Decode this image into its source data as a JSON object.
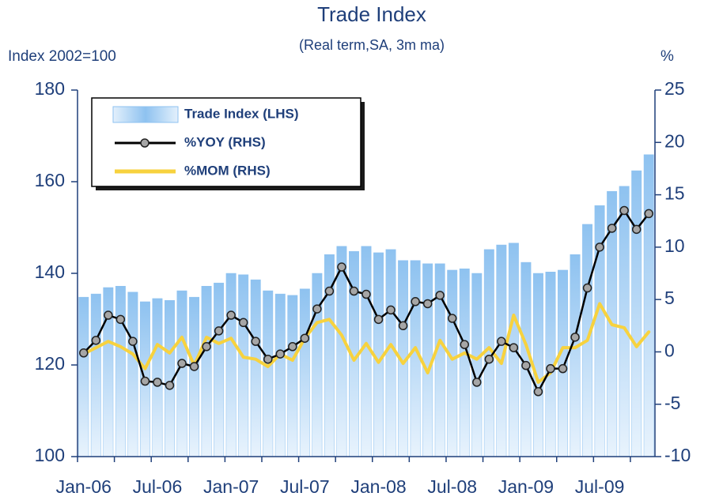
{
  "chart_data": {
    "type": "bar",
    "title": "Trade Index",
    "subtitle": "(Real term,SA, 3m ma)",
    "y_label": "Index 2002=100",
    "y2_label": "%",
    "categories": [
      "Jan-06",
      null,
      null,
      null,
      null,
      null,
      "Jul-06",
      null,
      null,
      null,
      null,
      null,
      "Jan-07",
      null,
      null,
      null,
      null,
      null,
      "Jul-07",
      null,
      null,
      null,
      null,
      null,
      "Jan-08",
      null,
      null,
      null,
      null,
      null,
      "Jul-08",
      null,
      null,
      null,
      null,
      null,
      "Jan-09",
      null,
      null,
      null,
      null,
      null,
      "Jul-09",
      null,
      null,
      null,
      null
    ],
    "series": [
      {
        "name": "Trade Index (LHS)",
        "type": "bar",
        "color": "#8ec2f0",
        "values": [
          134.8,
          135.5,
          136.9,
          137.2,
          135.9,
          133.8,
          134.5,
          134.1,
          136.2,
          134.8,
          137.2,
          137.9,
          140,
          139.7,
          138.6,
          136.2,
          135.5,
          135.2,
          136.6,
          140,
          144.1,
          145.9,
          144.8,
          145.9,
          144.5,
          145.2,
          142.8,
          142.8,
          142.1,
          142.1,
          140.7,
          141,
          140,
          145.2,
          146.2,
          146.6,
          142.4,
          140,
          140.3,
          140.7,
          144.1,
          150.7,
          154.8,
          157.9,
          159,
          162.4,
          165.9
        ]
      },
      {
        "name": "%YOY (RHS)",
        "type": "line",
        "axis": "y2",
        "color": "#000000",
        "marker": true,
        "values": [
          -0.1,
          1.1,
          3.5,
          3.1,
          1.0,
          -2.8,
          -2.9,
          -3.2,
          -1.1,
          -1.4,
          0.5,
          2.0,
          3.5,
          2.8,
          1.0,
          -0.7,
          -0.2,
          0.5,
          1.3,
          4.1,
          5.8,
          8.1,
          5.8,
          5.5,
          3.1,
          4.0,
          2.5,
          4.8,
          4.6,
          5.4,
          3.2,
          0.7,
          -2.9,
          -0.7,
          1.0,
          0.4,
          -1.3,
          -3.8,
          -1.6,
          -1.6,
          1.4,
          6.1,
          10.0,
          11.8,
          13.5,
          11.7,
          13.2
        ]
      },
      {
        "name": "%MOM (RHS)",
        "type": "line",
        "axis": "y2",
        "color": "#f7d23e",
        "marker": false,
        "values": [
          -0.2,
          0.4,
          1.0,
          0.5,
          -0.2,
          -1.6,
          0.7,
          -0.1,
          1.4,
          -1.3,
          1.4,
          0.8,
          1.3,
          -0.5,
          -0.7,
          -1.4,
          -0.2,
          -0.8,
          1.3,
          2.8,
          3.1,
          1.6,
          -0.8,
          0.8,
          -1.0,
          0.7,
          -1.1,
          0.4,
          -2.0,
          1.1,
          -0.7,
          -0.1,
          -0.7,
          0.4,
          -1.1,
          3.5,
          0.7,
          -2.9,
          -2.0,
          0.4,
          0.4,
          1.1,
          4.6,
          2.6,
          2.3,
          0.5,
          1.9
        ]
      }
    ],
    "ylim": [
      100,
      180
    ],
    "yticks": [
      100,
      120,
      140,
      160,
      180
    ],
    "y2lim": [
      -10,
      25
    ],
    "y2ticks": [
      -10,
      -5,
      0,
      5,
      10,
      15,
      20,
      25
    ],
    "legend": "upper left"
  }
}
